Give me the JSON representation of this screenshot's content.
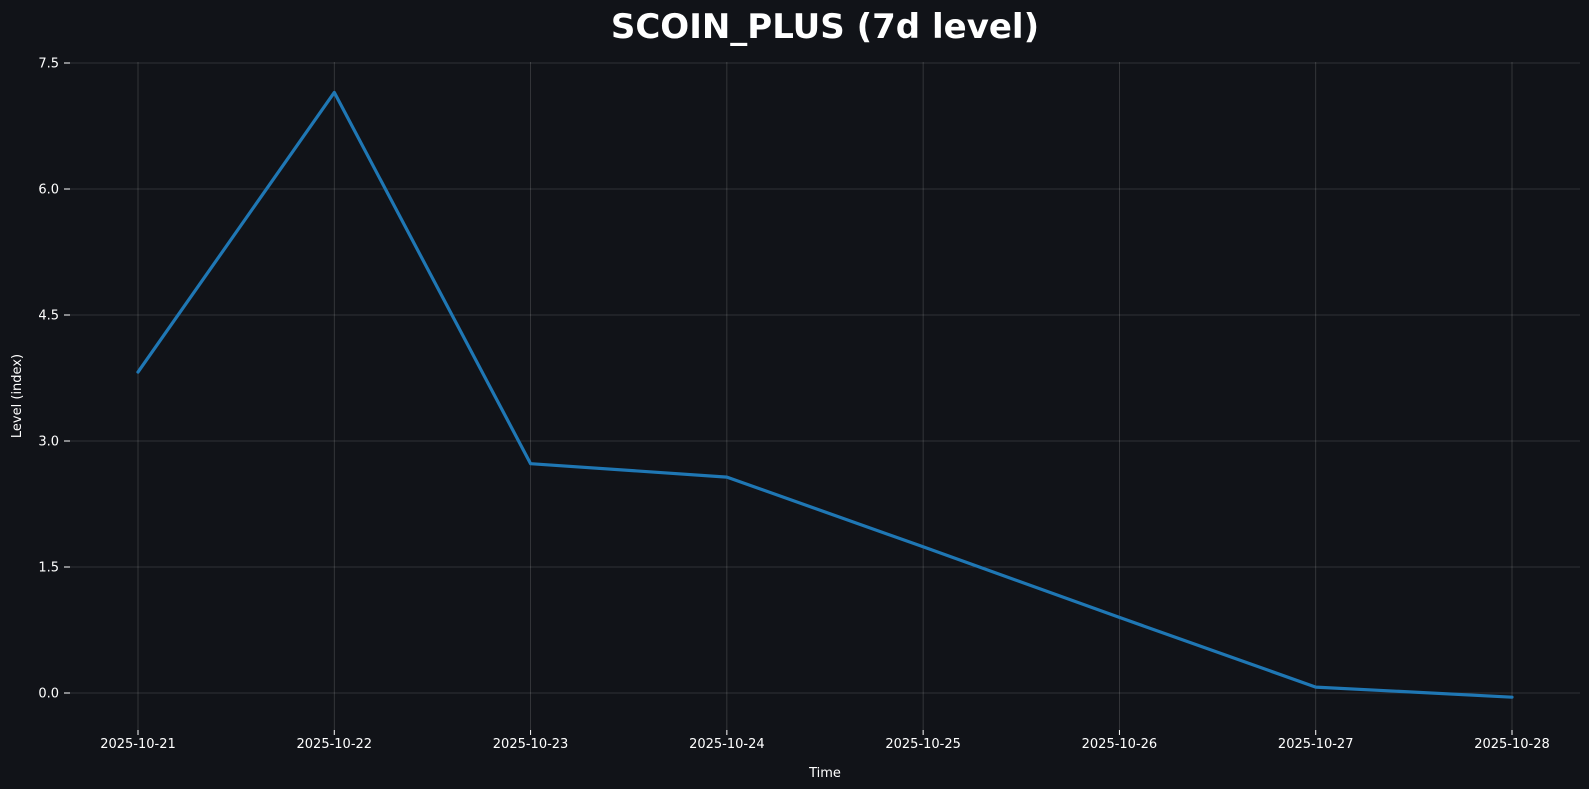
{
  "chart_data": {
    "type": "line",
    "title": "SCOIN_PLUS (7d level)",
    "xlabel": "Time",
    "ylabel": "Level (index)",
    "x": [
      "2025-10-21",
      "2025-10-22",
      "2025-10-23",
      "2025-10-24",
      "2025-10-25",
      "2025-10-26",
      "2025-10-27",
      "2025-10-28"
    ],
    "series": [
      {
        "values": [
          3.82,
          7.15,
          2.73,
          2.57,
          1.74,
          0.9,
          0.07,
          -0.05
        ],
        "color": "#1f77b4"
      }
    ],
    "ylim": [
      -0.45,
      7.5
    ],
    "yticks": [
      0.0,
      1.5,
      3.0,
      4.5,
      6.0,
      7.5
    ],
    "ytick_labels": [
      "0.0",
      "1.5",
      "3.0",
      "4.5",
      "6.0",
      "7.5"
    ],
    "grid": true,
    "background": "#111318"
  }
}
